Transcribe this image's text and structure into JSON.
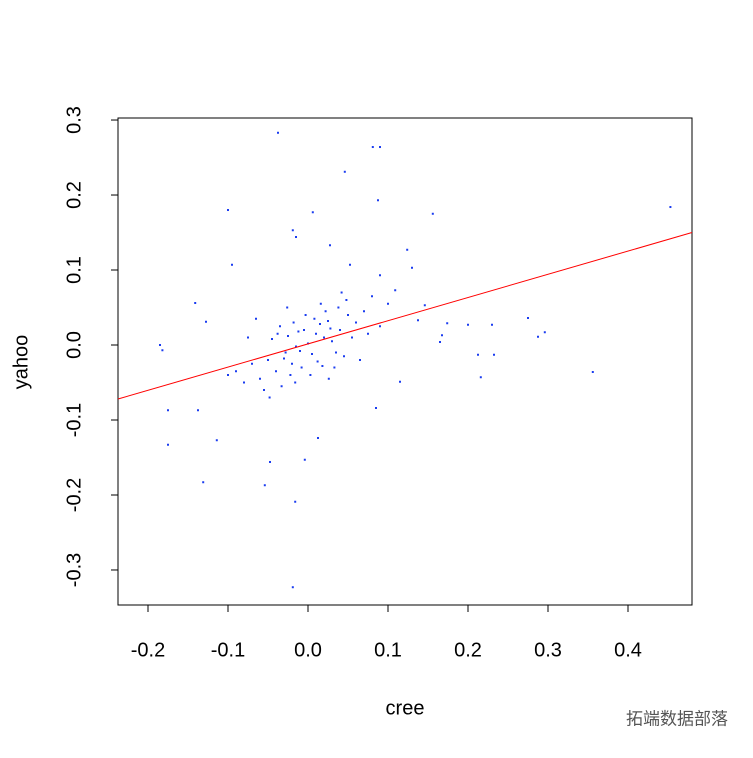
{
  "chart_data": {
    "type": "scatter",
    "xlabel": "cree",
    "ylabel": "yahoo",
    "color": "#1a3cf0",
    "x": [
      0,
      0.01,
      -0.01,
      0.02,
      -0.02,
      0.005,
      -0.005,
      0.015,
      -0.015,
      0.03,
      -0.03,
      0.025,
      -0.025,
      0.04,
      -0.04,
      0.035,
      -0.035,
      0.05,
      -0.05,
      0.045,
      -0.045,
      0.06,
      -0.06,
      0.012,
      -0.012,
      0.022,
      -0.022,
      0.008,
      -0.008,
      0.018,
      -0.018,
      0.028,
      -0.028,
      0.038,
      -0.038,
      0.055,
      -0.055,
      0.07,
      -0.07,
      0.065,
      -0.065,
      0.08,
      -0.08,
      0.003,
      -0.003,
      0.033,
      -0.033,
      0.048,
      -0.048,
      0.075,
      -0.075,
      0.09,
      -0.09,
      0.1,
      -0.1,
      0.016,
      -0.016,
      0.026,
      -0.026,
      0.042,
      -0.0375,
      0.081,
      0.09,
      0.046,
      0.453,
      -0.1,
      0.006,
      0.156,
      0.0875,
      -0.019,
      -0.015,
      0.124,
      0.13,
      -0.095,
      -0.141,
      -0.185,
      -0.182,
      -0.1275,
      -0.1375,
      -0.175,
      -0.114,
      -0.175,
      -0.131,
      -0.054,
      -0.016,
      -0.019,
      -0.004,
      -0.0475,
      0.0125,
      0.085,
      0.115,
      0.2125,
      0.2325,
      0.216,
      0.275,
      0.296,
      0.2875,
      0.356,
      0.1675,
      0.23,
      0.2,
      0.174,
      0.146,
      0.165,
      0.1375,
      0.109,
      0.09,
      0.0525,
      0.0275
    ],
    "y": [
      0.002,
      0.015,
      -0.008,
      0.01,
      -0.025,
      -0.012,
      0.02,
      0.028,
      -0.002,
      0.005,
      -0.018,
      0.032,
      0.012,
      0.02,
      -0.035,
      -0.01,
      0.025,
      0.04,
      -0.02,
      -0.015,
      0.008,
      0.03,
      -0.045,
      -0.022,
      0.018,
      0.045,
      -0.04,
      0.035,
      -0.03,
      -0.028,
      0.03,
      0.022,
      -0.01,
      0.05,
      0.015,
      0.01,
      -0.06,
      0.045,
      -0.025,
      -0.02,
      0.035,
      0.065,
      -0.05,
      -0.04,
      0.04,
      -0.03,
      -0.055,
      0.06,
      -0.07,
      0.015,
      0.01,
      0.025,
      -0.035,
      0.055,
      -0.04,
      0.055,
      -0.05,
      -0.045,
      0.05,
      0.07,
      0.283,
      0.264,
      0.264,
      0.231,
      0.184,
      0.18,
      0.177,
      0.175,
      0.193,
      0.153,
      0.144,
      0.127,
      0.103,
      0.107,
      0.056,
      0,
      -0.007,
      0.031,
      -0.087,
      -0.087,
      -0.127,
      -0.133,
      -0.183,
      -0.187,
      -0.209,
      -0.323,
      -0.153,
      -0.156,
      -0.124,
      -0.084,
      -0.049,
      -0.013,
      -0.013,
      -0.043,
      0.036,
      0.017,
      0.011,
      -0.036,
      0.013,
      0.027,
      0.027,
      0.029,
      0.053,
      0.004,
      0.033,
      0.073,
      0.093,
      0.107,
      0.133
    ],
    "regression_line": {
      "x": [
        -0.2375,
        0.48
      ],
      "y": [
        -0.072,
        0.15
      ],
      "color": "#ff0000"
    },
    "xlim": [
      -0.2375,
      0.48
    ],
    "ylim": [
      -0.3467,
      0.3027
    ],
    "xticks": [
      -0.2,
      -0.1,
      {
        "value": 0,
        "label": "0.0"
      },
      0.1,
      0.2,
      0.3,
      0.4
    ],
    "yticks": [
      -0.3,
      -0.2,
      -0.1,
      {
        "value": 0,
        "label": "0.0"
      },
      0.1,
      0.2,
      0.3
    ]
  },
  "watermark": "拓端数据部落"
}
